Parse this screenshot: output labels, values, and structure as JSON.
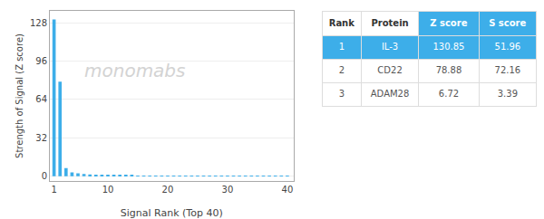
{
  "chart_data": {
    "type": "bar",
    "xlabel": "Signal Rank (Top 40)",
    "ylabel": "Strength of Signal (Z score)",
    "x": [
      1,
      2,
      3,
      4,
      5,
      6,
      7,
      8,
      9,
      10,
      11,
      12,
      13,
      14,
      15,
      16,
      17,
      18,
      19,
      20,
      21,
      22,
      23,
      24,
      25,
      26,
      27,
      28,
      29,
      30,
      31,
      32,
      33,
      34,
      35,
      36,
      37,
      38,
      39,
      40
    ],
    "values": [
      130.85,
      78.88,
      6.72,
      3.2,
      2.5,
      1.9,
      1.5,
      1.2,
      1.0,
      0.85,
      0.75,
      0.68,
      0.62,
      0.57,
      0.52,
      0.48,
      0.44,
      0.41,
      0.38,
      0.35,
      0.33,
      0.3,
      0.28,
      0.26,
      0.24,
      0.22,
      0.21,
      0.19,
      0.17,
      0.16,
      0.14,
      0.13,
      0.12,
      0.1,
      0.09,
      0.08,
      0.07,
      0.06,
      0.05,
      0.04
    ],
    "color": "#3daee9",
    "xlim": [
      0.3,
      41
    ],
    "ylim": [
      -4,
      138
    ],
    "xticks": [
      1,
      10,
      20,
      30,
      40
    ],
    "yticks": [
      0,
      32,
      64,
      96,
      128
    ],
    "grid": true,
    "annotations": [
      "monomabs"
    ],
    "table": {
      "columns": [
        "Rank",
        "Protein",
        "Z score",
        "S score"
      ],
      "rows": [
        [
          "1",
          "IL-3",
          "130.85",
          "51.96"
        ],
        [
          "2",
          "CD22",
          "78.88",
          "72.16"
        ],
        [
          "3",
          "ADAM28",
          "6.72",
          "3.39"
        ]
      ]
    }
  }
}
